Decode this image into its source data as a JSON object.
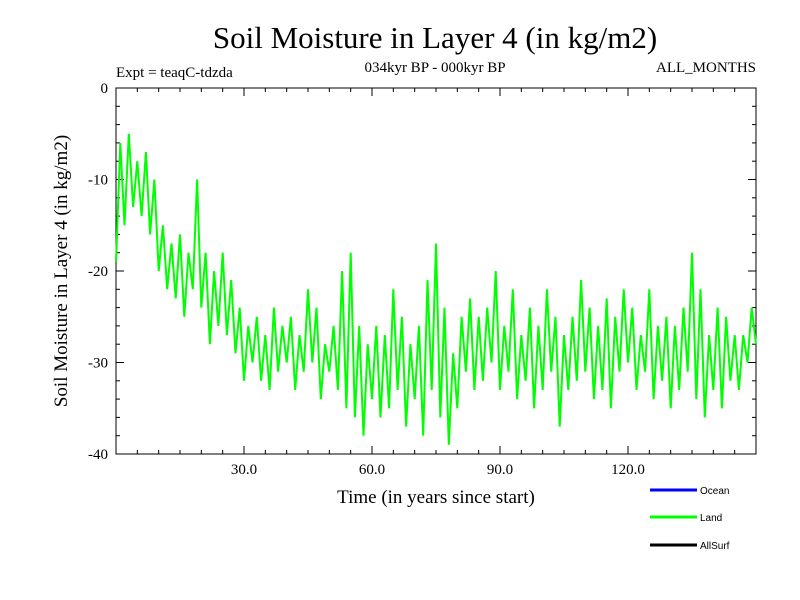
{
  "chart_data": {
    "type": "line",
    "title": "Soil Moisture in Layer 4 (in kg/m2)",
    "subtitle_left": "Expt = teaqC-tdzda",
    "subtitle_center": "034kyr BP - 000kyr BP",
    "subtitle_right": "ALL_MONTHS",
    "xlabel": "Time (in years since start)",
    "ylabel": "Soil Moisture in Layer 4 (in kg/m2)",
    "xlim": [
      0,
      150
    ],
    "ylim": [
      -40,
      0
    ],
    "x_ticks": [
      30,
      60,
      90,
      120
    ],
    "x_tick_labels": [
      "30.0",
      "60.0",
      "90.0",
      "120.0"
    ],
    "y_ticks": [
      0,
      -10,
      -20,
      -30,
      -40
    ],
    "y_tick_labels": [
      "0",
      "-10",
      "-20",
      "-30",
      "-40"
    ],
    "legend_position": "bottom-right",
    "series": [
      {
        "name": "Ocean",
        "color": "#0000ff",
        "values": []
      },
      {
        "name": "Land",
        "color": "#00ff00",
        "x": [
          0,
          1,
          2,
          3,
          4,
          5,
          6,
          7,
          8,
          9,
          10,
          11,
          12,
          13,
          14,
          15,
          16,
          17,
          18,
          19,
          20,
          21,
          22,
          23,
          24,
          25,
          26,
          27,
          28,
          29,
          30,
          31,
          32,
          33,
          34,
          35,
          36,
          37,
          38,
          39,
          40,
          41,
          42,
          43,
          44,
          45,
          46,
          47,
          48,
          49,
          50,
          51,
          52,
          53,
          54,
          55,
          56,
          57,
          58,
          59,
          60,
          61,
          62,
          63,
          64,
          65,
          66,
          67,
          68,
          69,
          70,
          71,
          72,
          73,
          74,
          75,
          76,
          77,
          78,
          79,
          80,
          81,
          82,
          83,
          84,
          85,
          86,
          87,
          88,
          89,
          90,
          91,
          92,
          93,
          94,
          95,
          96,
          97,
          98,
          99,
          100,
          101,
          102,
          103,
          104,
          105,
          106,
          107,
          108,
          109,
          110,
          111,
          112,
          113,
          114,
          115,
          116,
          117,
          118,
          119,
          120,
          121,
          122,
          123,
          124,
          125,
          126,
          127,
          128,
          129,
          130,
          131,
          132,
          133,
          134,
          135,
          136,
          137,
          138,
          139,
          140,
          141,
          142,
          143,
          144,
          145,
          146,
          147,
          148,
          149,
          150
        ],
        "values": [
          -19,
          -6,
          -15,
          -5,
          -13,
          -8,
          -14,
          -7,
          -16,
          -10,
          -20,
          -15,
          -22,
          -17,
          -23,
          -16,
          -25,
          -18,
          -22,
          -10,
          -24,
          -18,
          -28,
          -20,
          -26,
          -18,
          -27,
          -21,
          -29,
          -24,
          -32,
          -26,
          -30,
          -25,
          -32,
          -27,
          -33,
          -24,
          -31,
          -26,
          -30,
          -25,
          -33,
          -27,
          -31,
          -22,
          -30,
          -24,
          -34,
          -28,
          -31,
          -26,
          -33,
          -20,
          -35,
          -18,
          -36,
          -26,
          -38,
          -28,
          -34,
          -26,
          -36,
          -27,
          -35,
          -22,
          -33,
          -25,
          -37,
          -28,
          -34,
          -26,
          -38,
          -21,
          -33,
          -17,
          -36,
          -24,
          -39,
          -29,
          -35,
          -25,
          -31,
          -23,
          -33,
          -25,
          -32,
          -24,
          -30,
          -20,
          -33,
          -26,
          -31,
          -22,
          -34,
          -27,
          -32,
          -24,
          -35,
          -26,
          -33,
          -22,
          -31,
          -25,
          -37,
          -27,
          -33,
          -25,
          -32,
          -21,
          -31,
          -24,
          -34,
          -26,
          -33,
          -23,
          -35,
          -25,
          -31,
          -22,
          -30,
          -24,
          -33,
          -27,
          -31,
          -22,
          -34,
          -26,
          -32,
          -25,
          -35,
          -26,
          -33,
          -24,
          -31,
          -18,
          -34,
          -22,
          -36,
          -27,
          -33,
          -24,
          -35,
          -25,
          -32,
          -27,
          -33,
          -27,
          -30,
          -24,
          -28
        ]
      },
      {
        "name": "AllSurf",
        "color": "#000000",
        "values": []
      }
    ]
  }
}
